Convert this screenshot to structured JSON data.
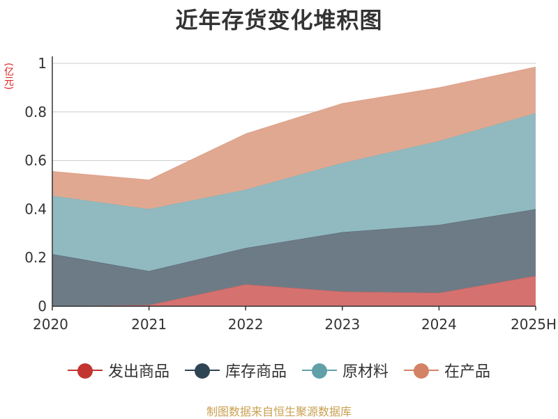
{
  "title": "近年存货变化堆积图",
  "unit": "(亿元)",
  "source": "制图数据来自恒生聚源数据库",
  "chart_data": {
    "type": "area",
    "stacked": true,
    "categories": [
      "2020",
      "2021",
      "2022",
      "2023",
      "2024",
      "2025H"
    ],
    "ylim": [
      0,
      1
    ],
    "yticks": [
      0,
      0.2,
      0.4,
      0.6,
      0.8,
      1
    ],
    "ytick_labels": [
      "0",
      "0.2",
      "0.4",
      "0.6",
      "0.8",
      "1"
    ],
    "grid": true,
    "legend_position": "bottom",
    "series": [
      {
        "name": "发出商品",
        "color": "#c23531",
        "fill": "#d5726f",
        "values": [
          0.0,
          0.005,
          0.09,
          0.06,
          0.055,
          0.125
        ]
      },
      {
        "name": "库存商品",
        "color": "#2f4554",
        "fill": "#6d7b86",
        "values": [
          0.215,
          0.14,
          0.15,
          0.245,
          0.28,
          0.275
        ]
      },
      {
        "name": "原材料",
        "color": "#61a0a8",
        "fill": "#91bac0",
        "values": [
          0.24,
          0.255,
          0.24,
          0.285,
          0.345,
          0.395
        ]
      },
      {
        "name": "在产品",
        "color": "#d48265",
        "fill": "#e0a891",
        "values": [
          0.1,
          0.12,
          0.23,
          0.245,
          0.22,
          0.19
        ]
      }
    ]
  }
}
